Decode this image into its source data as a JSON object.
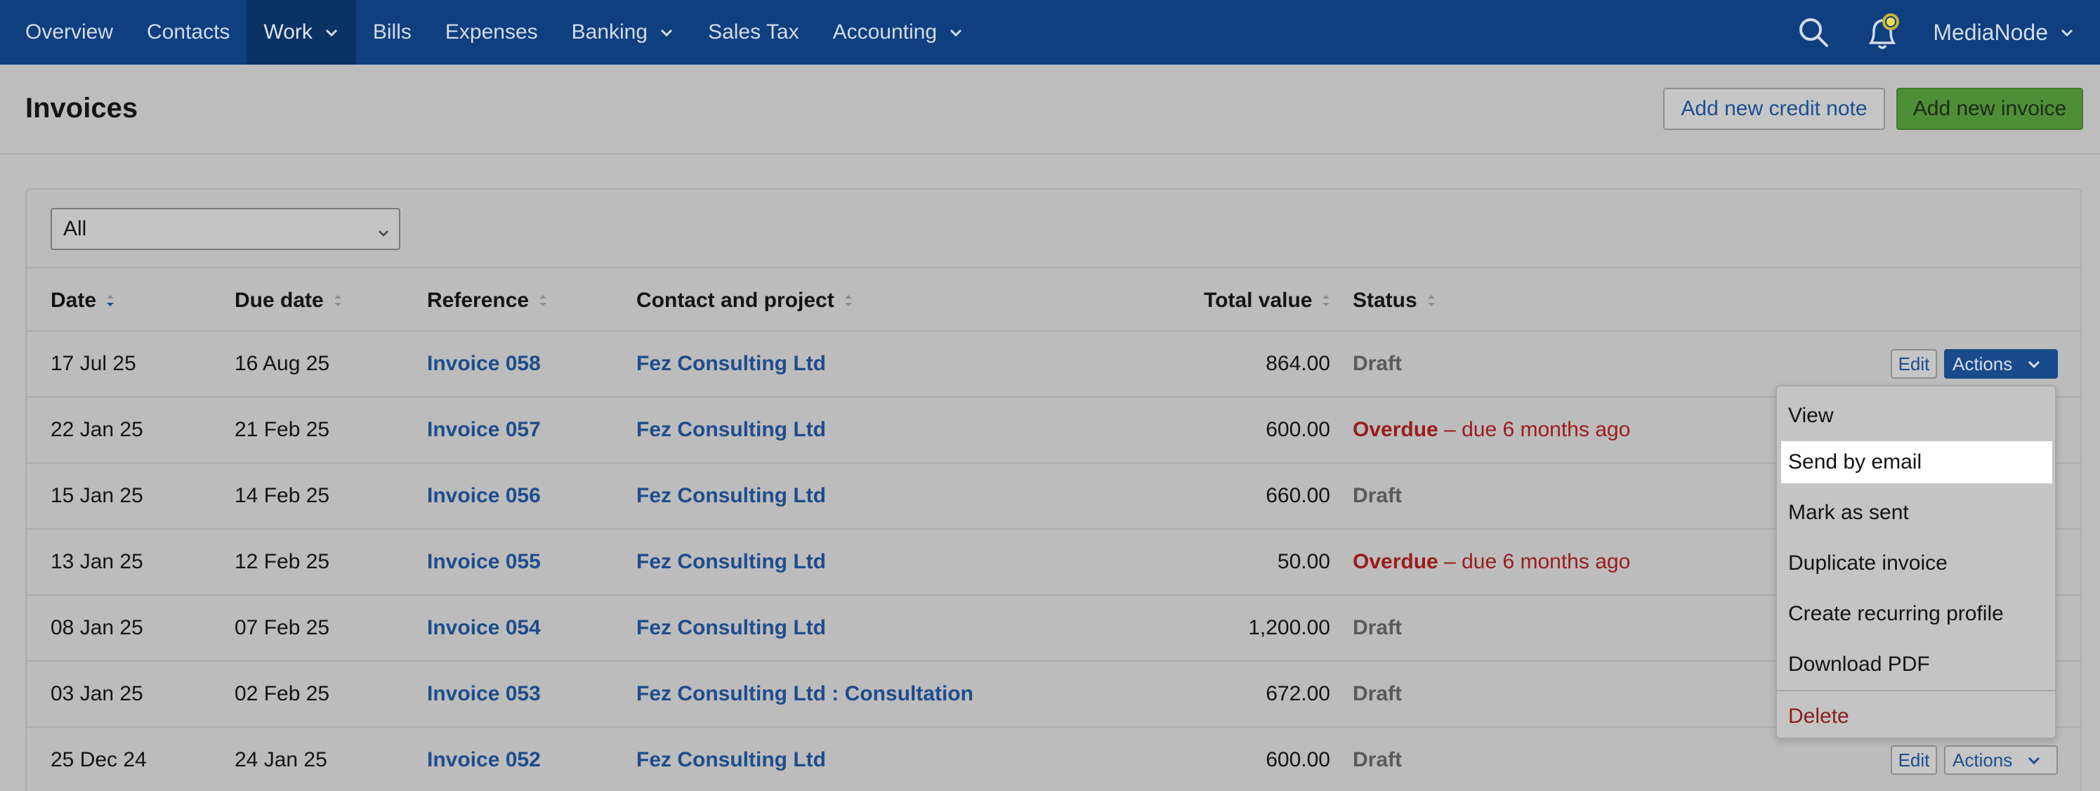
{
  "nav": {
    "items": [
      {
        "label": "Overview"
      },
      {
        "label": "Contacts"
      },
      {
        "label": "Work",
        "dropdown": true,
        "active": true
      },
      {
        "label": "Bills"
      },
      {
        "label": "Expenses"
      },
      {
        "label": "Banking",
        "dropdown": true
      },
      {
        "label": "Sales Tax"
      },
      {
        "label": "Accounting",
        "dropdown": true
      }
    ],
    "org_name": "MediaNode",
    "icons": [
      "search-icon",
      "bell-icon"
    ]
  },
  "header": {
    "title": "Invoices",
    "credit_note_label": "Add new credit note",
    "new_invoice_label": "Add new invoice"
  },
  "filter": {
    "value": "All"
  },
  "table": {
    "columns": [
      "Date",
      "Due date",
      "Reference",
      "Contact and project",
      "Total value",
      "Status"
    ],
    "rows": [
      {
        "date": "17 Jul 25",
        "due": "16 Aug 25",
        "ref": "Invoice 058",
        "contact": "Fez Consulting Ltd",
        "total": "864.00",
        "status": "Draft",
        "status_detail": ""
      },
      {
        "date": "22 Jan 25",
        "due": "21 Feb 25",
        "ref": "Invoice 057",
        "contact": "Fez Consulting Ltd",
        "total": "600.00",
        "status": "Overdue",
        "status_detail": "– due 6 months ago"
      },
      {
        "date": "15 Jan 25",
        "due": "14 Feb 25",
        "ref": "Invoice 056",
        "contact": "Fez Consulting Ltd",
        "total": "660.00",
        "status": "Draft",
        "status_detail": ""
      },
      {
        "date": "13 Jan 25",
        "due": "12 Feb 25",
        "ref": "Invoice 055",
        "contact": "Fez Consulting Ltd",
        "total": "50.00",
        "status": "Overdue",
        "status_detail": "– due 6 months ago"
      },
      {
        "date": "08 Jan 25",
        "due": "07 Feb 25",
        "ref": "Invoice 054",
        "contact": "Fez Consulting Ltd",
        "total": "1,200.00",
        "status": "Draft",
        "status_detail": ""
      },
      {
        "date": "03 Jan 25",
        "due": "02 Feb 25",
        "ref": "Invoice 053",
        "contact": "Fez Consulting Ltd : Consultation",
        "total": "672.00",
        "status": "Draft",
        "status_detail": ""
      },
      {
        "date": "25 Dec 24",
        "due": "24 Jan 25",
        "ref": "Invoice 052",
        "contact": "Fez Consulting Ltd",
        "total": "600.00",
        "status": "Draft",
        "status_detail": ""
      }
    ],
    "edit_label": "Edit",
    "actions_label": "Actions"
  },
  "menu": {
    "items": [
      "View",
      "Send by email",
      "Mark as sent",
      "Duplicate invoice",
      "Create recurring profile",
      "Download PDF"
    ],
    "danger_item": "Delete",
    "highlighted": "Send by email"
  },
  "colors": {
    "nav_bg": "#0f3f7f",
    "link": "#1e4d8d",
    "overdue": "#9b1c1c",
    "primary_btn": "#4e8e37"
  }
}
